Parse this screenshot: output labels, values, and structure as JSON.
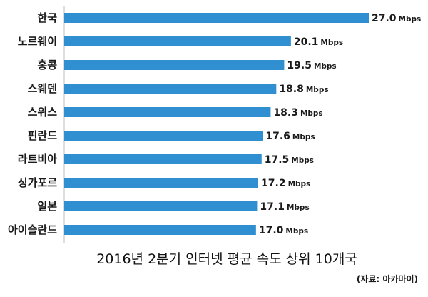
{
  "chart_data": {
    "type": "bar",
    "orientation": "horizontal",
    "title": "2016년 2분기 인터넷 평균 속도 상위 10개국",
    "source": "(자료: 아카마이)",
    "unit": "Mbps",
    "categories": [
      "한국",
      "노르웨이",
      "홍콩",
      "스웨덴",
      "스위스",
      "핀란드",
      "라트비아",
      "싱가포르",
      "일본",
      "아이슬란드"
    ],
    "values": [
      27.0,
      20.1,
      19.5,
      18.8,
      18.3,
      17.6,
      17.5,
      17.2,
      17.1,
      17.0
    ],
    "value_labels": [
      "27.0",
      "20.1",
      "19.5",
      "18.8",
      "18.3",
      "17.6",
      "17.5",
      "17.2",
      "17.1",
      "17.0"
    ],
    "bar_color": "#2f8fd1",
    "grid": false,
    "legend": false
  }
}
